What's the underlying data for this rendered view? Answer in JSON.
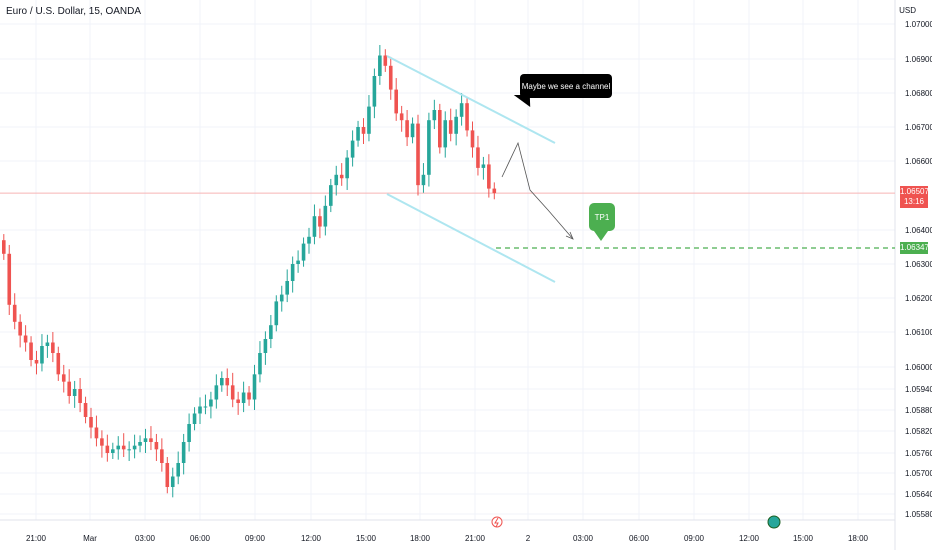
{
  "header": {
    "title": "Euro / U.S. Dollar, 15, OANDA",
    "currency": "USD"
  },
  "annotations": {
    "callout_text": "Maybe we see a channel",
    "tp_label": "TP1"
  },
  "price_tags": {
    "current_price": "1.06507",
    "countdown": "13:16",
    "tp_price": "1.06347"
  },
  "colors": {
    "up": "#26a69a",
    "down": "#ef5350",
    "channel": "#aee6f0",
    "target_line": "#4caf50",
    "current_line": "#f7b5b5"
  },
  "chart_data": {
    "type": "candlestick",
    "title": "Euro / U.S. Dollar, 15, OANDA",
    "y_axis": {
      "unit": "USD",
      "range": [
        1.0555,
        1.0705
      ],
      "scale": "nonlinear (ticks as printed)",
      "ticks": [
        "1.07000",
        "1.06900",
        "1.06800",
        "1.06700",
        "1.06600",
        "1.06400",
        "1.06300",
        "1.06200",
        "1.06100",
        "1.06000",
        "1.05940",
        "1.05880",
        "1.05820",
        "1.05760",
        "1.05700",
        "1.05640",
        "1.05580"
      ]
    },
    "x_axis": {
      "ticks": [
        "21:00",
        "Mar",
        "03:00",
        "06:00",
        "09:00",
        "12:00",
        "15:00",
        "18:00",
        "21:00",
        "2",
        "03:00",
        "06:00",
        "09:00",
        "12:00",
        "15:00",
        "18:00"
      ]
    },
    "current_price": 1.06507,
    "target_price": 1.06347,
    "candles_close": [
      1.0633,
      1.0618,
      1.0613,
      1.0609,
      1.0607,
      1.0602,
      1.0601,
      1.0606,
      1.0607,
      1.0604,
      1.0598,
      1.0596,
      1.0592,
      1.0594,
      1.059,
      1.0586,
      1.0583,
      1.058,
      1.0578,
      1.0576,
      1.0577,
      1.0578,
      1.0577,
      1.0577,
      1.0578,
      1.0579,
      1.058,
      1.0579,
      1.0577,
      1.0573,
      1.0566,
      1.0569,
      1.0573,
      1.0579,
      1.0584,
      1.0587,
      1.0589,
      1.0589,
      1.0591,
      1.0595,
      1.0597,
      1.0595,
      1.0591,
      1.059,
      1.0593,
      1.0591,
      1.0598,
      1.0604,
      1.0608,
      1.0612,
      1.0619,
      1.0621,
      1.0625,
      1.063,
      1.0631,
      1.0636,
      1.0638,
      1.0644,
      1.0641,
      1.0647,
      1.0653,
      1.0656,
      1.0655,
      1.0661,
      1.0666,
      1.067,
      1.0668,
      1.0676,
      1.0685,
      1.0691,
      1.0688,
      1.0681,
      1.0674,
      1.0672,
      1.0667,
      1.0671,
      1.0653,
      1.0656,
      1.0672,
      1.0675,
      1.0664,
      1.0672,
      1.0668,
      1.0673,
      1.0677,
      1.0669,
      1.0664,
      1.0658,
      1.0659,
      1.0652,
      1.06507
    ]
  }
}
